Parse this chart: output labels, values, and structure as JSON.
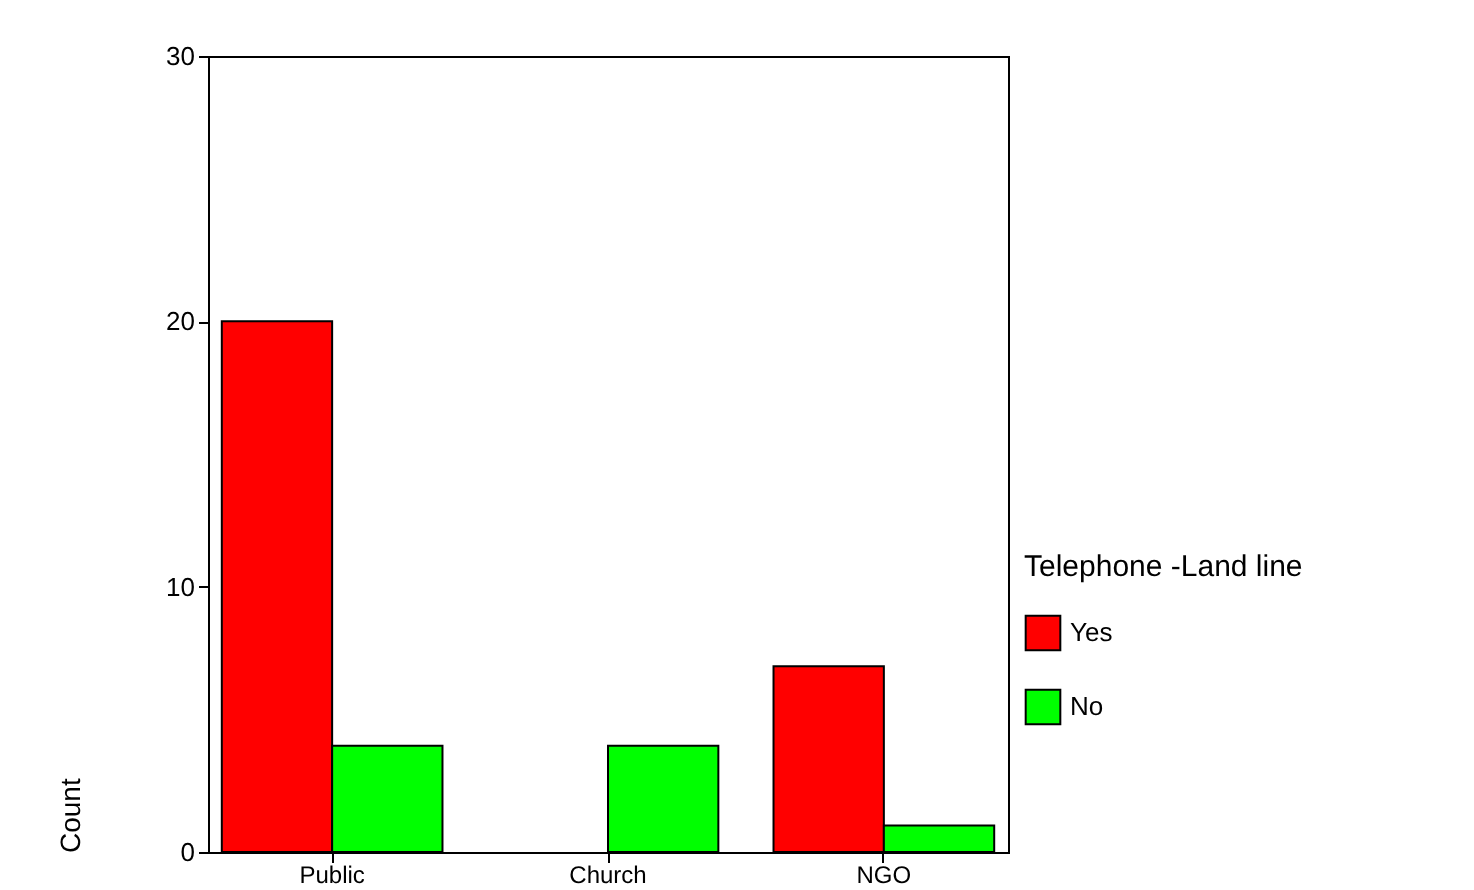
{
  "chart_data": {
    "type": "bar",
    "ylabel": "Count",
    "legend_title": "Telephone -Land line",
    "categories": [
      "Public",
      "Church",
      "NGO"
    ],
    "series": [
      {
        "name": "Yes",
        "color": "#ff0000",
        "values": [
          20,
          0,
          7
        ]
      },
      {
        "name": "No",
        "color": "#00ff00",
        "values": [
          4,
          4,
          1
        ]
      }
    ],
    "ylim": [
      0,
      30
    ],
    "yticks": [
      0,
      10,
      20,
      30
    ],
    "grid": false,
    "legend": "right"
  }
}
